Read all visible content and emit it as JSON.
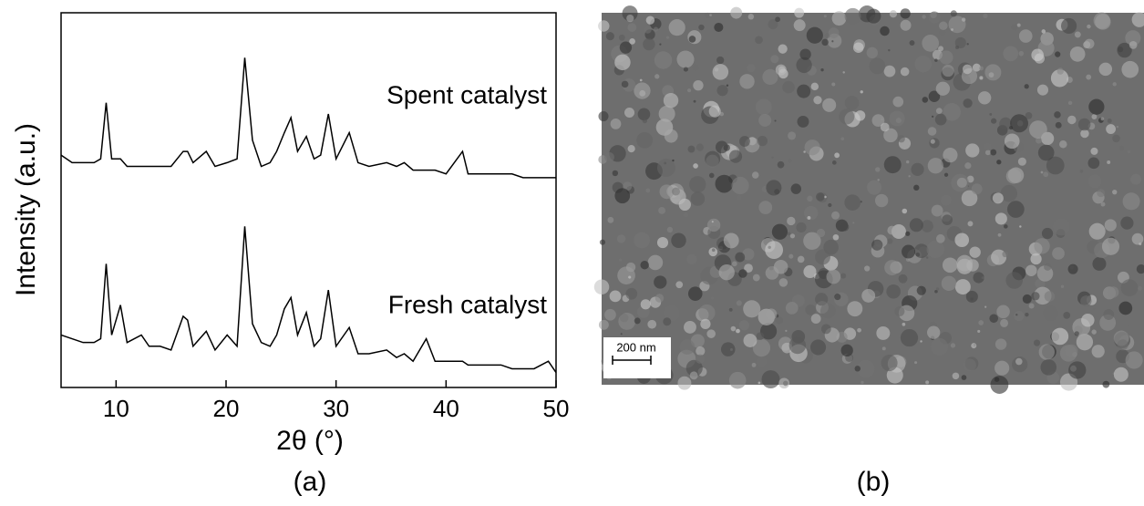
{
  "chart_data": {
    "type": "line",
    "xlabel": "2θ (°)",
    "ylabel": "Intensity (a.u.)",
    "x": [
      5,
      6,
      7,
      8,
      8.6,
      9.1,
      9.6,
      10.4,
      11,
      12.3,
      13,
      14,
      15,
      16.1,
      16.5,
      17,
      18.2,
      19,
      20.1,
      21,
      21.7,
      22.4,
      23.2,
      24,
      24.6,
      25.3,
      25.9,
      26.5,
      27.3,
      28,
      28.6,
      29.3,
      30,
      31.2,
      32,
      33,
      34.6,
      35.5,
      36.2,
      37,
      38.2,
      39,
      40,
      41.5,
      42,
      43,
      44,
      45,
      46,
      47,
      48,
      49.3,
      50
    ],
    "series": [
      {
        "name": "Spent catalyst",
        "color": "#000000",
        "values": [
          62,
          60,
          60,
          60,
          61,
          76,
          61,
          61,
          59,
          59,
          59,
          59,
          59,
          63,
          63,
          60,
          63,
          59,
          60,
          61,
          88,
          66,
          59,
          60,
          63,
          68,
          72,
          63,
          67,
          61,
          62,
          73,
          61,
          68,
          60,
          59,
          60,
          59,
          60,
          58,
          58,
          58,
          57,
          63,
          57,
          57,
          57,
          57,
          57,
          56,
          56,
          56,
          56
        ]
      },
      {
        "name": "Fresh catalyst",
        "color": "#000000",
        "values": [
          14,
          13,
          12,
          12,
          13,
          33,
          14,
          22,
          12,
          14,
          11,
          11,
          10,
          19,
          18,
          11,
          15,
          10,
          14,
          11,
          43,
          17,
          12,
          11,
          14,
          21,
          24,
          14,
          20,
          11,
          13,
          26,
          11,
          16,
          9,
          9,
          10,
          8,
          9,
          7,
          13,
          7,
          7,
          7,
          6,
          6,
          6,
          6,
          5,
          5,
          5,
          7,
          4
        ]
      }
    ],
    "xlim": [
      5,
      50
    ],
    "xticks": [
      10,
      20,
      30,
      40,
      50
    ],
    "ylim": [
      0,
      100
    ]
  },
  "panel_labels": [
    "(a)",
    "(b)"
  ],
  "image": {
    "scale_bar": "200 nm"
  }
}
